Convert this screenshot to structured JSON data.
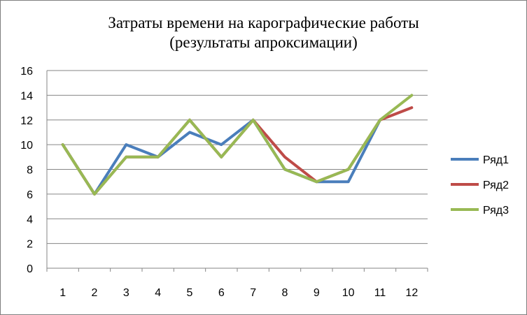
{
  "chart_data": {
    "type": "line",
    "title": "Затраты времени на карографические работы",
    "subtitle": "(результаты апроксимации)",
    "xlabel": "",
    "ylabel": "",
    "categories": [
      "1",
      "2",
      "3",
      "4",
      "5",
      "6",
      "7",
      "8",
      "9",
      "10",
      "11",
      "12"
    ],
    "ylim": [
      0,
      16
    ],
    "yticks": [
      "0",
      "2",
      "4",
      "6",
      "8",
      "10",
      "12",
      "14",
      "16"
    ],
    "grid": true,
    "legend": "right",
    "series": [
      {
        "name": "Ряд1",
        "color": "#4a7ebb",
        "values": [
          10,
          6,
          10,
          9,
          11,
          10,
          12,
          8,
          7,
          7,
          12,
          null
        ]
      },
      {
        "name": "Ряд2",
        "color": "#be4b48",
        "values": [
          10,
          6,
          9,
          9,
          12,
          9,
          12,
          9,
          7,
          8,
          12,
          13
        ]
      },
      {
        "name": "Ряд3",
        "color": "#98b954",
        "values": [
          10,
          6,
          9,
          9,
          12,
          9,
          12,
          8,
          7,
          8,
          12,
          14
        ]
      }
    ]
  }
}
